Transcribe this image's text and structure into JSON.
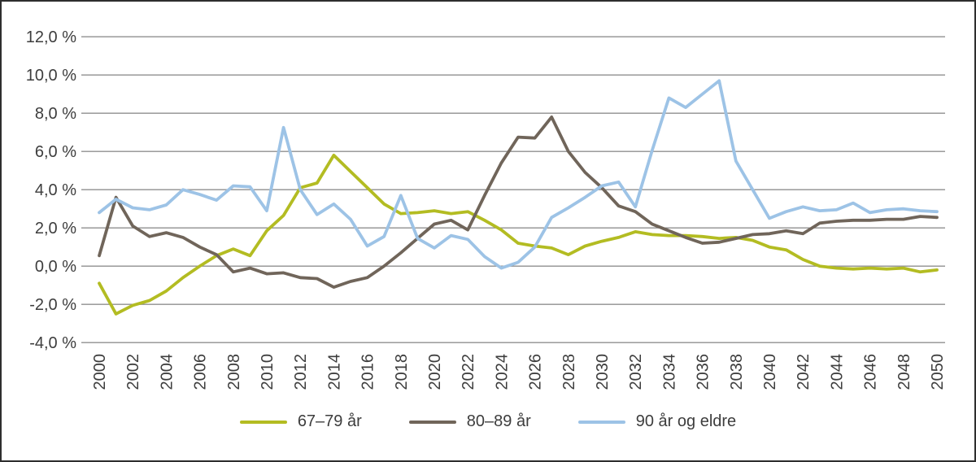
{
  "chart_data": {
    "type": "line",
    "x": [
      2000,
      2001,
      2002,
      2003,
      2004,
      2005,
      2006,
      2007,
      2008,
      2009,
      2010,
      2011,
      2012,
      2013,
      2014,
      2015,
      2016,
      2017,
      2018,
      2019,
      2020,
      2021,
      2022,
      2023,
      2024,
      2025,
      2026,
      2027,
      2028,
      2029,
      2030,
      2031,
      2032,
      2033,
      2034,
      2035,
      2036,
      2037,
      2038,
      2039,
      2040,
      2041,
      2042,
      2043,
      2044,
      2045,
      2046,
      2047,
      2048,
      2049,
      2050
    ],
    "x_tick_step": 2,
    "series": [
      {
        "name": "67–79 år",
        "color": "#b3bc22",
        "values": [
          -0.9,
          -2.5,
          -2.05,
          -1.8,
          -1.3,
          -0.6,
          0.0,
          0.55,
          0.9,
          0.55,
          1.85,
          2.65,
          4.1,
          4.35,
          5.8,
          4.95,
          4.1,
          3.25,
          2.75,
          2.8,
          2.9,
          2.75,
          2.85,
          2.4,
          1.9,
          1.2,
          1.05,
          0.95,
          0.6,
          1.05,
          1.3,
          1.5,
          1.8,
          1.65,
          1.6,
          1.6,
          1.55,
          1.45,
          1.5,
          1.35,
          1.0,
          0.85,
          0.35,
          0.0,
          -0.1,
          -0.15,
          -0.1,
          -0.15,
          -0.1,
          -0.3,
          -0.2
        ]
      },
      {
        "name": "80–89 år",
        "color": "#70655a",
        "values": [
          0.55,
          3.6,
          2.1,
          1.55,
          1.75,
          1.5,
          1.0,
          0.6,
          -0.3,
          -0.1,
          -0.4,
          -0.35,
          -0.6,
          -0.65,
          -1.1,
          -0.8,
          -0.6,
          0.0,
          0.7,
          1.45,
          2.2,
          2.4,
          1.9,
          3.7,
          5.4,
          6.75,
          6.7,
          7.8,
          6.0,
          4.9,
          4.1,
          3.15,
          2.85,
          2.2,
          1.85,
          1.5,
          1.2,
          1.25,
          1.45,
          1.65,
          1.7,
          1.85,
          1.7,
          2.25,
          2.35,
          2.4,
          2.4,
          2.45,
          2.45,
          2.6,
          2.55
        ]
      },
      {
        "name": "90 år og eldre",
        "color": "#9dc3e6",
        "values": [
          2.8,
          3.5,
          3.05,
          2.95,
          3.2,
          4.0,
          3.75,
          3.45,
          4.2,
          4.15,
          2.9,
          7.25,
          4.0,
          2.7,
          3.25,
          2.45,
          1.05,
          1.55,
          3.7,
          1.45,
          0.95,
          1.6,
          1.4,
          0.5,
          -0.1,
          0.2,
          1.0,
          2.55,
          3.05,
          3.6,
          4.2,
          4.4,
          3.1,
          6.05,
          8.8,
          8.3,
          9.0,
          9.7,
          5.5,
          4.0,
          2.5,
          2.85,
          3.1,
          2.9,
          2.95,
          3.3,
          2.8,
          2.95,
          3.0,
          2.9,
          2.85
        ]
      }
    ],
    "title": "",
    "xlabel": "",
    "ylabel": "",
    "ylim": [
      -4,
      12
    ],
    "ytick_step": 2,
    "ytick_labels": [
      "12,0 %",
      "10,0 %",
      "8,0 %",
      "6,0 %",
      "4,0 %",
      "2,0 %",
      "0,0 %",
      "-2,0 %",
      "-4,0 %"
    ],
    "grid": "horizontal",
    "gridline_color": "#8f8f8f",
    "legend_position": "bottom"
  }
}
